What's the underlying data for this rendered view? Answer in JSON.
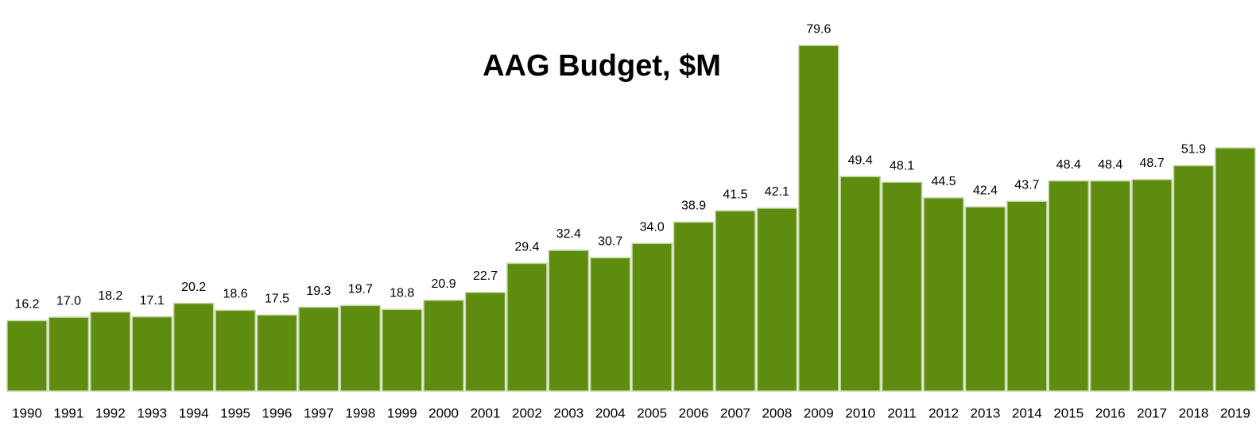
{
  "chart_data": {
    "type": "bar",
    "title": "AAG Budget, $M",
    "categories": [
      "1990",
      "1991",
      "1992",
      "1993",
      "1994",
      "1995",
      "1996",
      "1997",
      "1998",
      "1999",
      "2000",
      "2001",
      "2002",
      "2003",
      "2004",
      "2005",
      "2006",
      "2007",
      "2008",
      "2009",
      "2010",
      "2011",
      "2012",
      "2013",
      "2014",
      "2015",
      "2016",
      "2017",
      "2018",
      "2019"
    ],
    "values": [
      16.2,
      17.0,
      18.2,
      17.1,
      20.2,
      18.6,
      17.5,
      19.3,
      19.7,
      18.8,
      20.9,
      22.7,
      29.4,
      32.4,
      30.7,
      34.0,
      38.9,
      41.5,
      42.1,
      79.6,
      49.4,
      48.1,
      44.5,
      42.4,
      43.7,
      48.4,
      48.4,
      48.7,
      51.9,
      56.0
    ],
    "value_labels": [
      "16.2",
      "17.0",
      "18.2",
      "17.1",
      "20.2",
      "18.6",
      "17.5",
      "19.3",
      "19.7",
      "18.8",
      "20.9",
      "22.7",
      "29.4",
      "32.4",
      "30.7",
      "34.0",
      "38.9",
      "41.5",
      "42.1",
      "79.6",
      "49.4",
      "48.1",
      "44.5",
      "42.4",
      "43.7",
      "48.4",
      "48.4",
      "48.7",
      "51.9",
      null
    ],
    "color": "#5e8c0e",
    "ylim": [
      0,
      80
    ],
    "grid": false
  }
}
